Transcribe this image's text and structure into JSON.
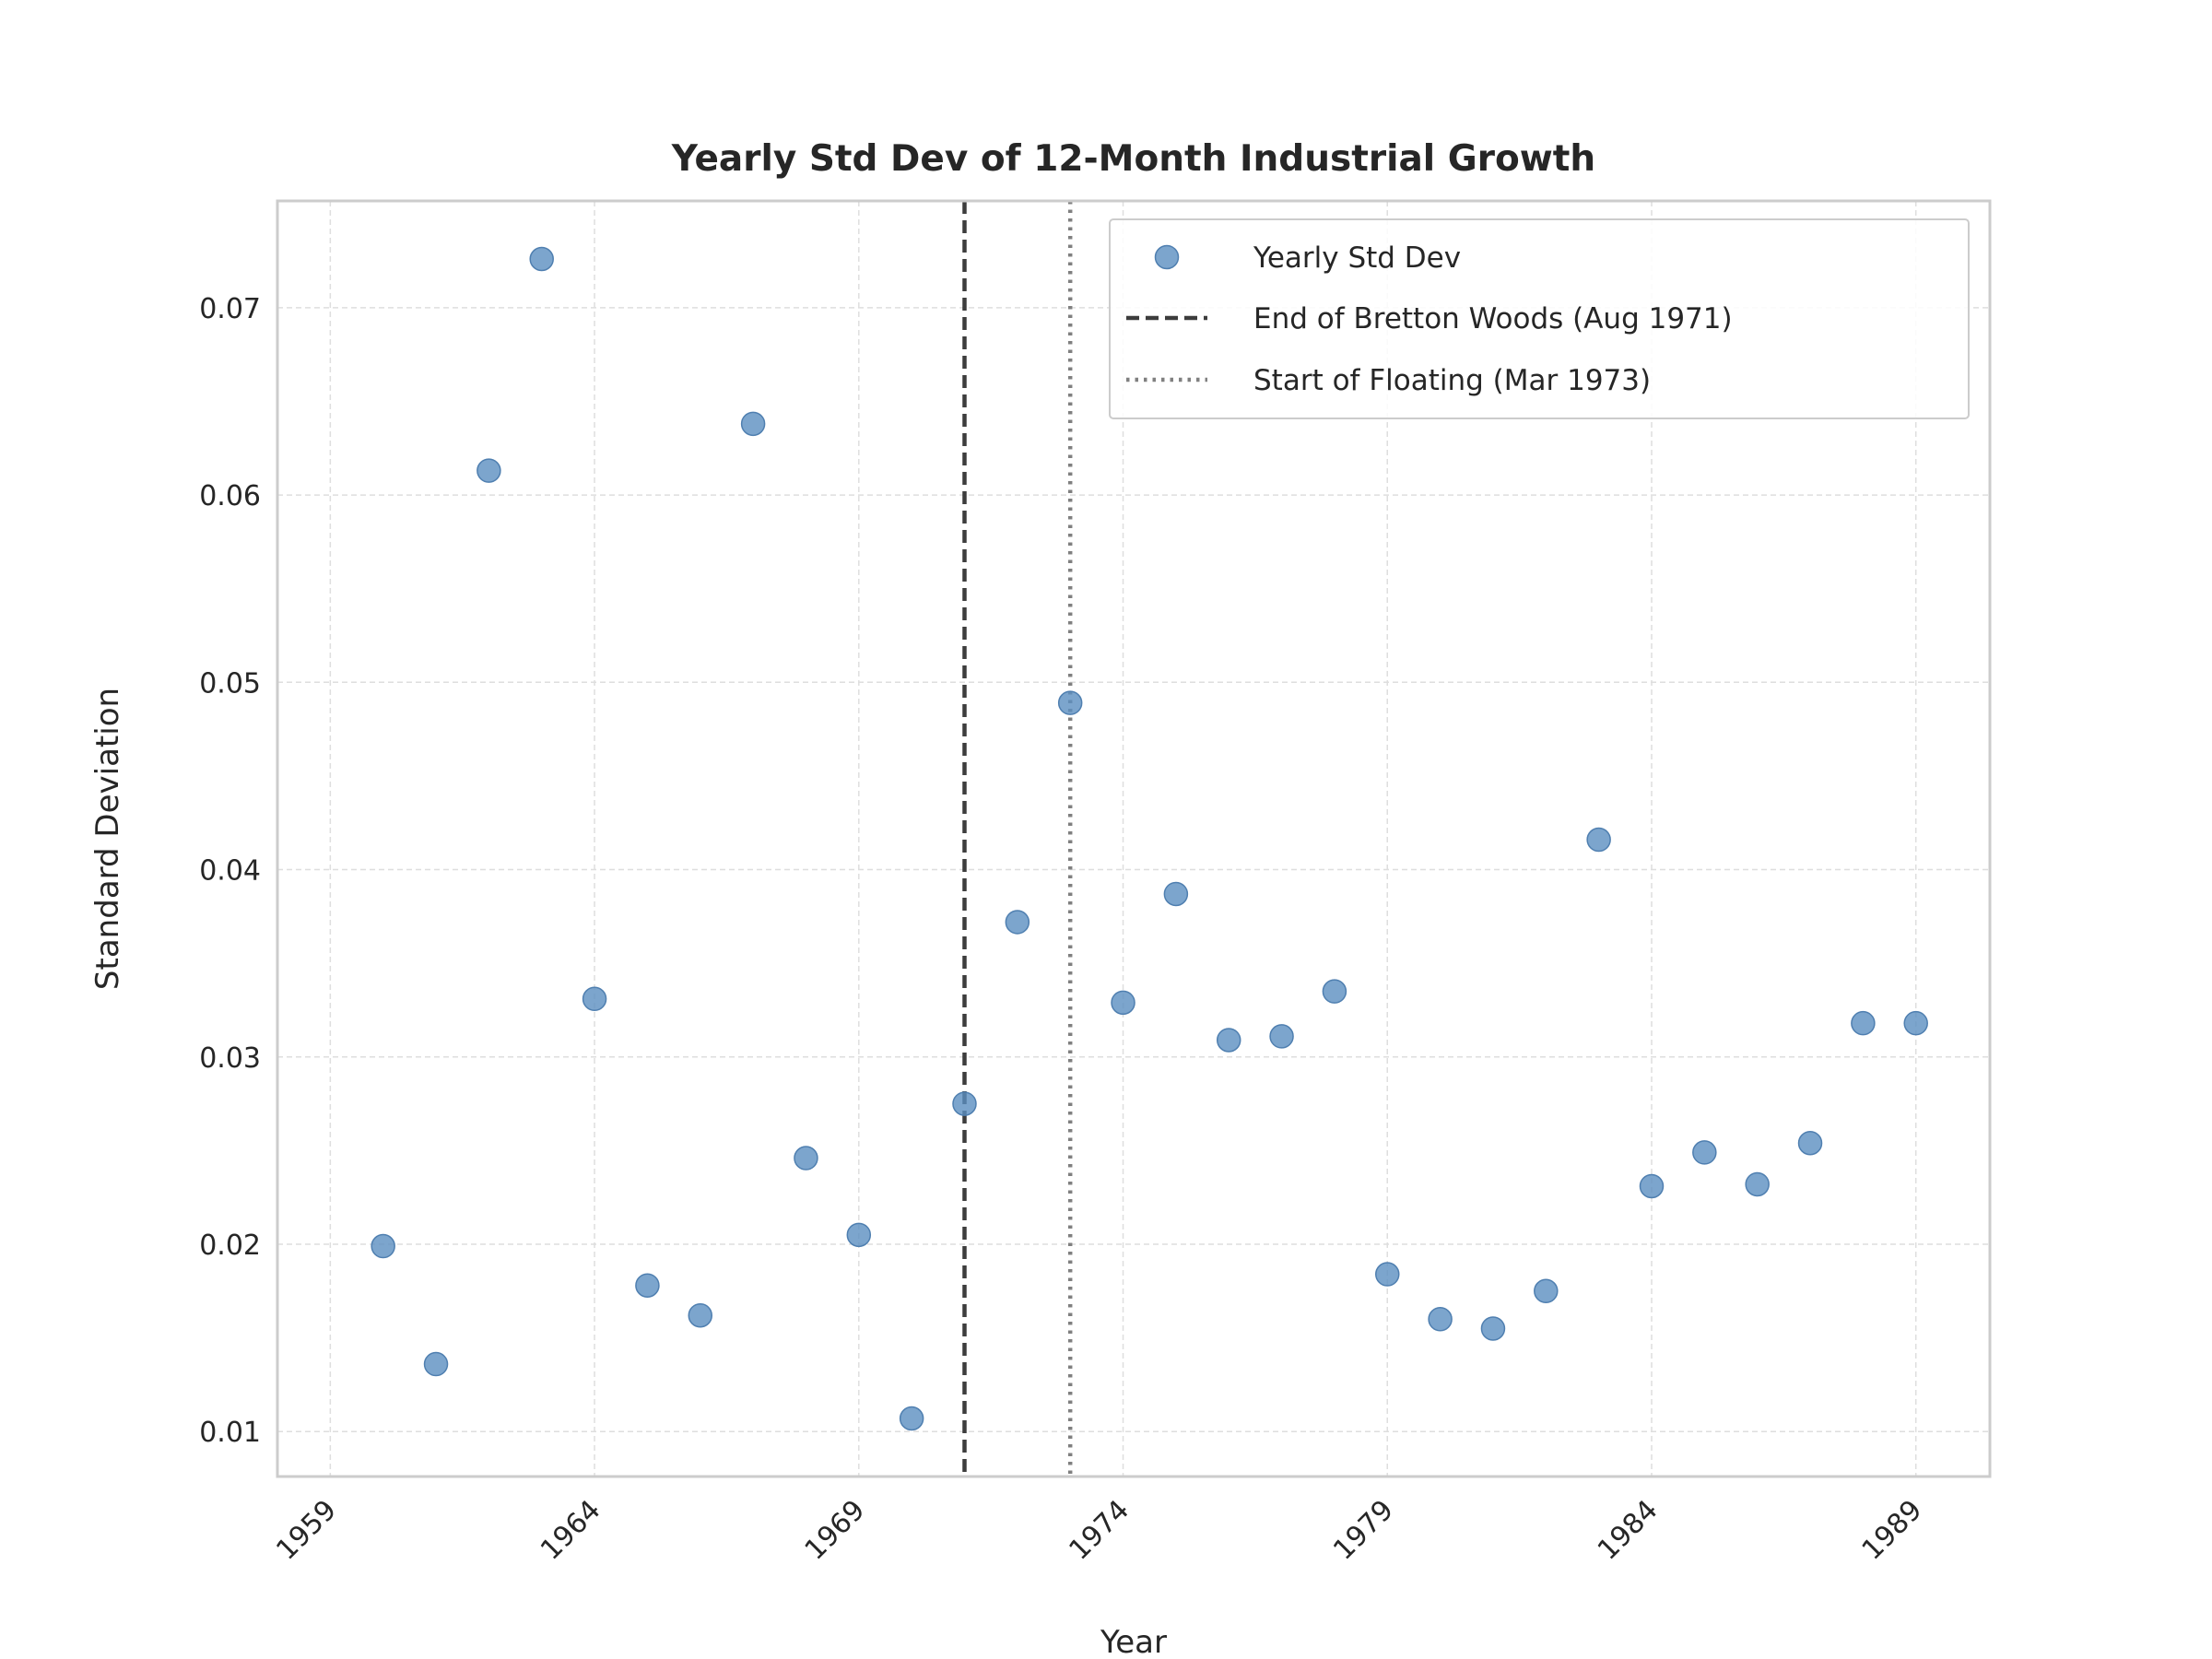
{
  "chart_data": {
    "type": "scatter",
    "title": "Yearly Std Dev of 12-Month Industrial Growth",
    "xlabel": "Year",
    "ylabel": "Standard Deviation",
    "xlim": [
      1958.0,
      1990.4
    ],
    "ylim": [
      0.0076,
      0.0757
    ],
    "x_ticks": [
      1959,
      1964,
      1969,
      1974,
      1979,
      1984,
      1989
    ],
    "y_ticks": [
      0.01,
      0.02,
      0.03,
      0.04,
      0.05,
      0.06,
      0.07
    ],
    "y_tick_labels": [
      "0.01",
      "0.02",
      "0.03",
      "0.04",
      "0.05",
      "0.06",
      "0.07"
    ],
    "grid": true,
    "legend_position": "top-right",
    "series": [
      {
        "name": "Yearly Std Dev",
        "color": "#5b8ec1",
        "x": [
          1960,
          1961,
          1962,
          1963,
          1964,
          1965,
          1966,
          1967,
          1968,
          1969,
          1970,
          1971,
          1972,
          1973,
          1974,
          1975,
          1976,
          1977,
          1978,
          1979,
          1980,
          1981,
          1982,
          1983,
          1984,
          1985,
          1986,
          1987,
          1988,
          1989
        ],
        "y": [
          0.0199,
          0.0136,
          0.0613,
          0.0726,
          0.0331,
          0.0178,
          0.0162,
          0.0638,
          0.0246,
          0.0205,
          0.0107,
          0.0275,
          0.0372,
          0.0489,
          0.0329,
          0.0387,
          0.0309,
          0.0311,
          0.0335,
          0.0184,
          0.016,
          0.0155,
          0.0175,
          0.0416,
          0.0231,
          0.0249,
          0.0232,
          0.0254,
          0.0318,
          0.0318
        ]
      }
    ],
    "reference_lines": [
      {
        "name": "End of Bretton Woods (Aug 1971)",
        "x": 1971.0,
        "style": "dashed",
        "color": "#3d3d3d"
      },
      {
        "name": "Start of Floating (Mar 1973)",
        "x": 1973.0,
        "style": "dotted",
        "color": "#808080"
      }
    ]
  }
}
